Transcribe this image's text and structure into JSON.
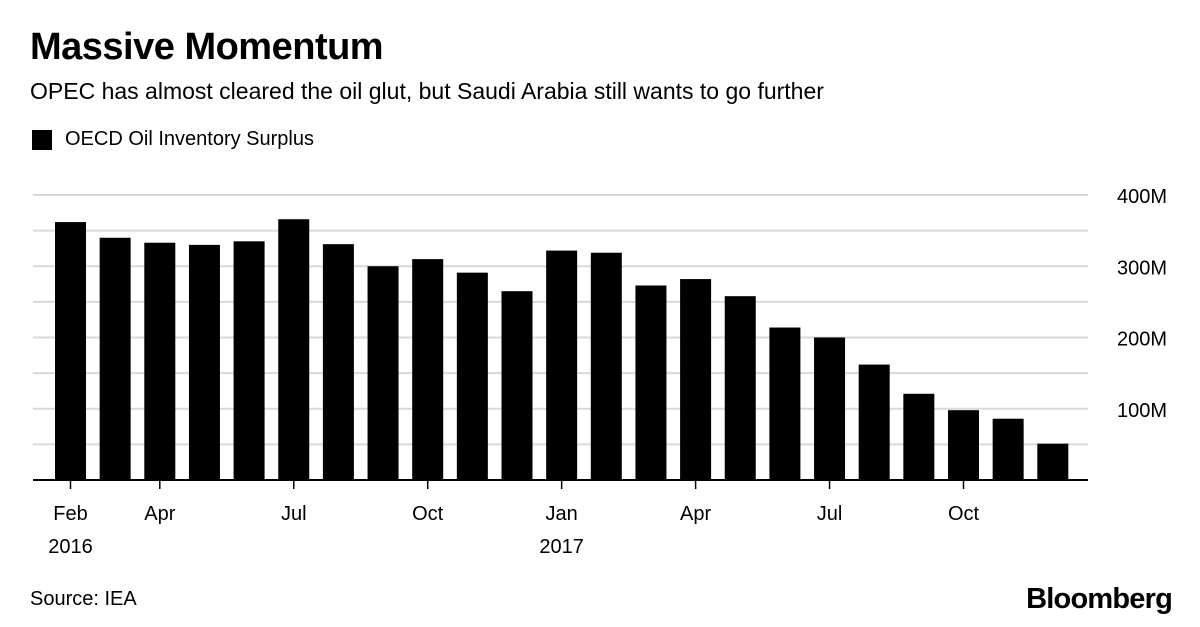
{
  "header": {
    "title": "Massive Momentum",
    "subtitle": "OPEC has almost cleared the oil glut, but Saudi Arabia still wants to go further"
  },
  "footer": {
    "source": "Source: IEA",
    "brand": "Bloomberg"
  },
  "colors": {
    "bar": "#000000",
    "grid": "#d9d9d9",
    "axis": "#000000"
  },
  "chart_data": {
    "type": "bar",
    "title": "Massive Momentum",
    "subtitle": "OPEC has almost cleared the oil glut, but Saudi Arabia still wants to go further",
    "legend": "top-left",
    "grid": true,
    "ylim": [
      0,
      400
    ],
    "y_unit": "M",
    "y_ticks": [
      {
        "value": 100,
        "label": "100M"
      },
      {
        "value": 200,
        "label": "200M"
      },
      {
        "value": 300,
        "label": "300M"
      },
      {
        "value": 400,
        "label": "400M"
      }
    ],
    "categories": [
      "2016-02",
      "2016-03",
      "2016-04",
      "2016-05",
      "2016-06",
      "2016-07",
      "2016-08",
      "2016-09",
      "2016-10",
      "2016-11",
      "2016-12",
      "2017-01",
      "2017-02",
      "2017-03",
      "2017-04",
      "2017-05",
      "2017-06",
      "2017-07",
      "2017-08",
      "2017-09",
      "2017-10",
      "2017-11",
      "2017-12"
    ],
    "x_ticks": [
      {
        "index": 0,
        "label": "Feb",
        "sublabel": "2016"
      },
      {
        "index": 2,
        "label": "Apr"
      },
      {
        "index": 5,
        "label": "Jul"
      },
      {
        "index": 8,
        "label": "Oct"
      },
      {
        "index": 11,
        "label": "Jan",
        "sublabel": "2017"
      },
      {
        "index": 14,
        "label": "Apr"
      },
      {
        "index": 17,
        "label": "Jul"
      },
      {
        "index": 20,
        "label": "Oct"
      }
    ],
    "series": [
      {
        "name": "OECD Oil Inventory Surplus",
        "values": [
          362,
          340,
          333,
          330,
          335,
          366,
          331,
          300,
          310,
          291,
          265,
          322,
          319,
          273,
          282,
          258,
          214,
          200,
          162,
          121,
          98,
          86,
          51
        ]
      }
    ]
  }
}
